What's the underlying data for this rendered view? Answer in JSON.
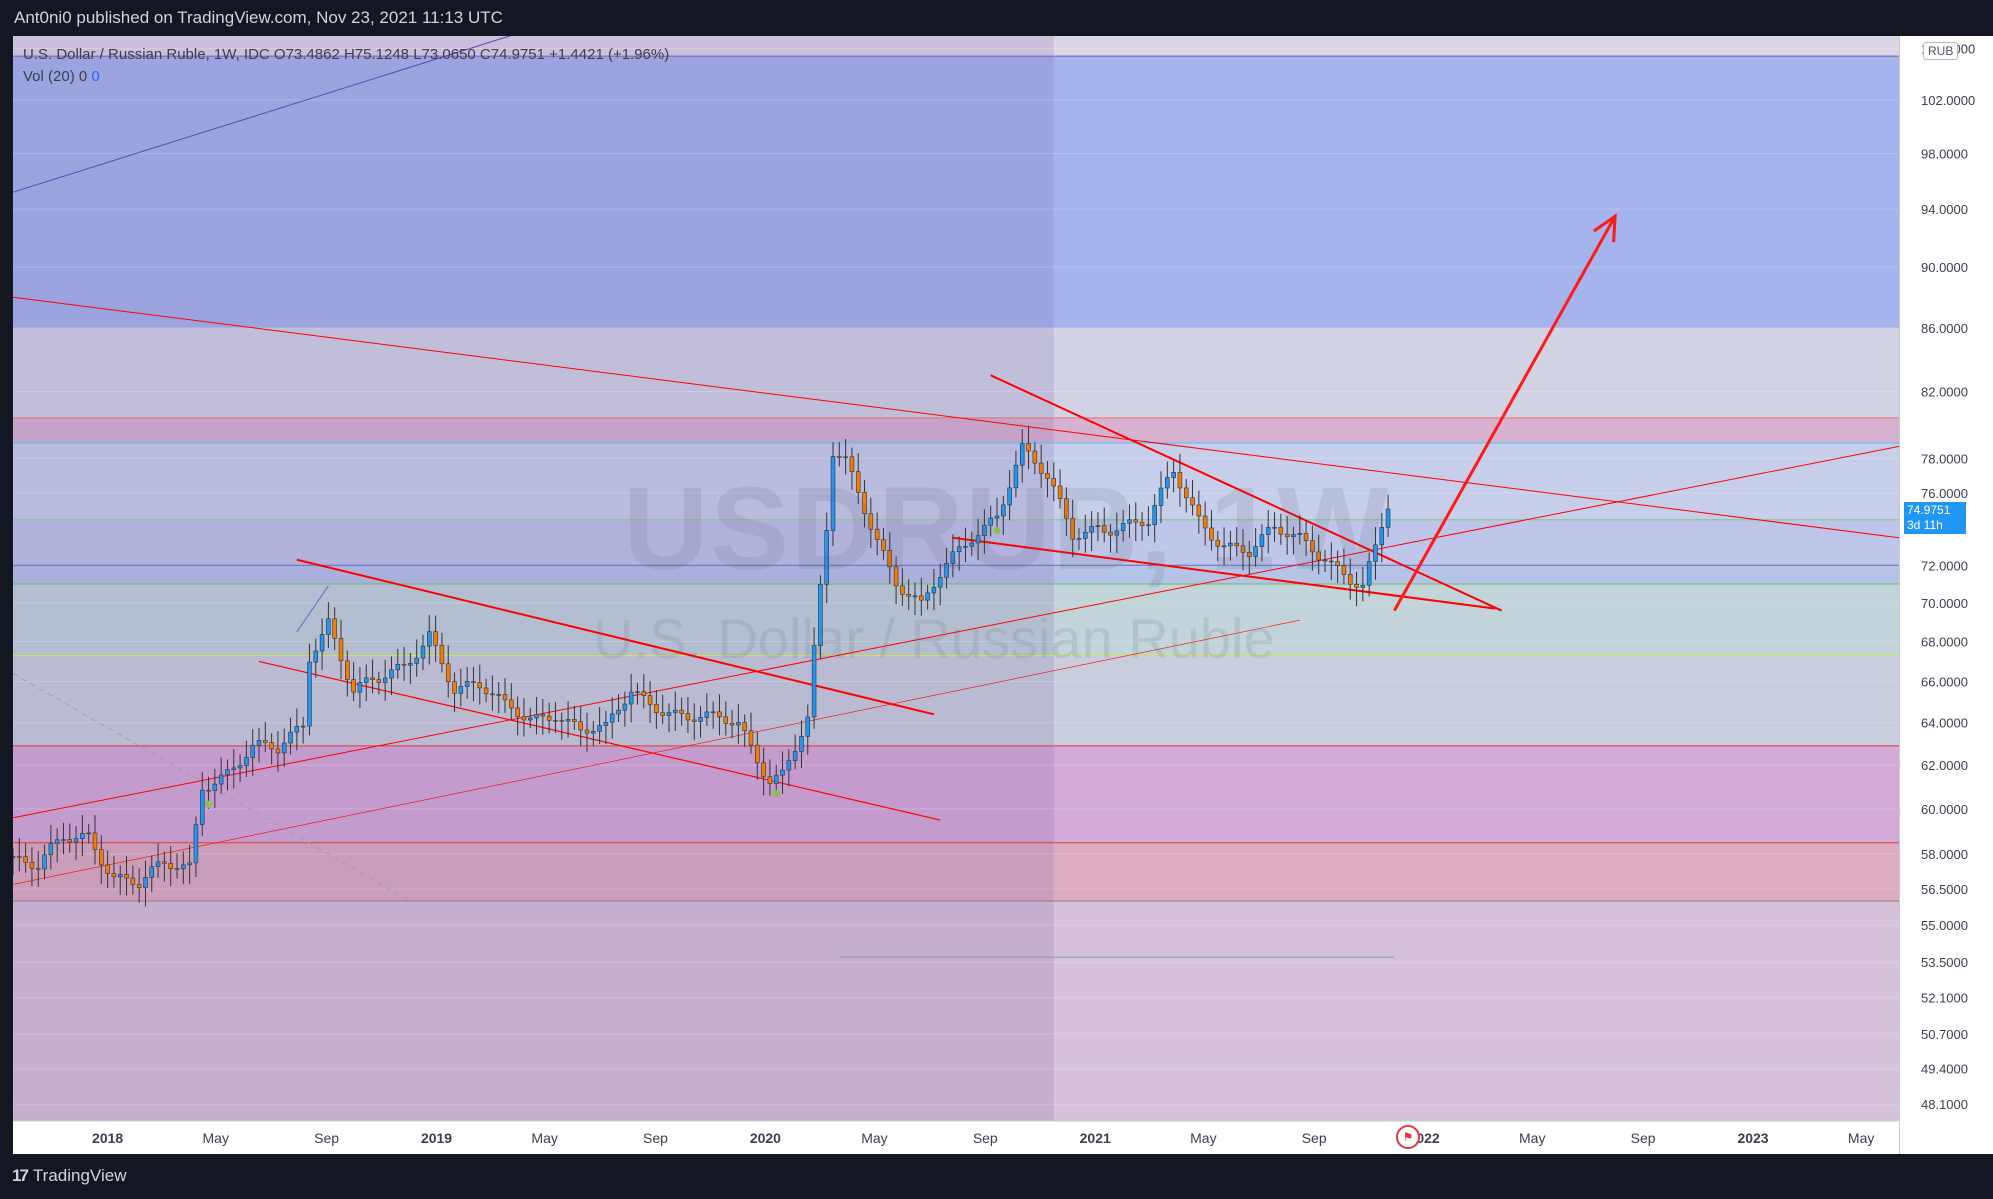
{
  "header": {
    "published": "Ant0ni0 published on TradingView.com, Nov 23, 2021 11:13 UTC"
  },
  "footer": {
    "brand": "TradingView"
  },
  "legend": {
    "symbol_line": "U.S. Dollar / Russian Ruble, 1W, IDC  O73.4862  H75.1248  L73.0650  C74.9751  +1.4421 (+1.96%)",
    "volume_label": "Vol (20)",
    "volume_value_1": "0",
    "volume_value_2": "0"
  },
  "watermark": {
    "ticker": "USDRUB, 1W",
    "name": "U.S. Dollar / Russian Ruble"
  },
  "price_axis": {
    "currency": "RUB",
    "last_price": "74.9751",
    "countdown": "3d 11h"
  },
  "colors": {
    "background": "#131722",
    "bull_candle": "#2196f3",
    "bear_candle": "#f57c00",
    "trendline": "#ff0000",
    "last_price_tag": "#2196f3"
  },
  "chart_data": {
    "type": "candlestick",
    "title": "U.S. Dollar / Russian Ruble, 1W, IDC",
    "ohlc_last": {
      "open": 73.4862,
      "high": 75.1248,
      "low": 73.065,
      "close": 74.9751,
      "change": 1.4421,
      "change_pct": 1.96
    },
    "y_scale": "log",
    "ylim": [
      47.5,
      107
    ],
    "y_ticks": [
      {
        "label": "106.0000",
        "value": 106
      },
      {
        "label": "102.0000",
        "value": 102
      },
      {
        "label": "98.0000",
        "value": 98
      },
      {
        "label": "94.0000",
        "value": 94
      },
      {
        "label": "90.0000",
        "value": 90
      },
      {
        "label": "86.0000",
        "value": 86
      },
      {
        "label": "82.0000",
        "value": 82
      },
      {
        "label": "78.0000",
        "value": 78
      },
      {
        "label": "76.0000",
        "value": 76
      },
      {
        "label": "72.0000",
        "value": 72
      },
      {
        "label": "70.0000",
        "value": 70
      },
      {
        "label": "68.0000",
        "value": 68
      },
      {
        "label": "66.0000",
        "value": 66
      },
      {
        "label": "64.0000",
        "value": 64
      },
      {
        "label": "62.0000",
        "value": 62
      },
      {
        "label": "60.0000",
        "value": 60
      },
      {
        "label": "58.0000",
        "value": 58
      },
      {
        "label": "56.5000",
        "value": 56.5
      },
      {
        "label": "55.0000",
        "value": 55
      },
      {
        "label": "53.5000",
        "value": 53.5
      },
      {
        "label": "52.1000",
        "value": 52.1
      },
      {
        "label": "50.7000",
        "value": 50.7
      },
      {
        "label": "49.4000",
        "value": 49.4
      },
      {
        "label": "48.1000",
        "value": 48.1
      }
    ],
    "xlim": [
      "2017-09-18",
      "2023-06-12"
    ],
    "x_ticks": [
      {
        "label": "2018",
        "date": "2018-01-01",
        "bold": true
      },
      {
        "label": "May",
        "date": "2018-05-01",
        "bold": false
      },
      {
        "label": "Sep",
        "date": "2018-09-01",
        "bold": false
      },
      {
        "label": "2019",
        "date": "2019-01-01",
        "bold": true
      },
      {
        "label": "May",
        "date": "2019-05-01",
        "bold": false
      },
      {
        "label": "Sep",
        "date": "2019-09-01",
        "bold": false
      },
      {
        "label": "2020",
        "date": "2020-01-01",
        "bold": true
      },
      {
        "label": "May",
        "date": "2020-05-01",
        "bold": false
      },
      {
        "label": "Sep",
        "date": "2020-09-01",
        "bold": false
      },
      {
        "label": "2021",
        "date": "2021-01-01",
        "bold": true
      },
      {
        "label": "May",
        "date": "2021-05-01",
        "bold": false
      },
      {
        "label": "Sep",
        "date": "2021-09-01",
        "bold": false
      },
      {
        "label": "2022",
        "date": "2022-01-01",
        "bold": true
      },
      {
        "label": "May",
        "date": "2022-05-01",
        "bold": false
      },
      {
        "label": "Sep",
        "date": "2022-09-01",
        "bold": false
      },
      {
        "label": "2023",
        "date": "2023-01-01",
        "bold": true
      },
      {
        "label": "May",
        "date": "2023-05-01",
        "bold": false
      }
    ],
    "zones": [
      {
        "from": 86.0,
        "to": 105.4,
        "color": "rgba(125,155,240,0.58)"
      },
      {
        "from": 80.4,
        "to": 86.0,
        "color": "rgba(200,210,228,0.55)"
      },
      {
        "from": 78.9,
        "to": 80.4,
        "color": "rgba(212,150,190,0.55)"
      },
      {
        "from": 74.5,
        "to": 78.9,
        "color": "rgba(180,200,236,0.55)"
      },
      {
        "from": 72.0,
        "to": 74.5,
        "color": "rgba(165,185,235,0.55)"
      },
      {
        "from": 71.0,
        "to": 72.0,
        "color": "rgba(150,180,230,0.55)"
      },
      {
        "from": 67.3,
        "to": 71.0,
        "color": "rgba(170,212,205,0.55)"
      },
      {
        "from": 62.9,
        "to": 67.3,
        "color": "rgba(186,200,214,0.55)"
      },
      {
        "from": 58.5,
        "to": 62.9,
        "color": "rgba(205,135,200,0.55)"
      },
      {
        "from": 56.0,
        "to": 58.5,
        "color": "rgba(220,140,160,0.55)"
      },
      {
        "from": 47.5,
        "to": 56.0,
        "color": "rgba(210,180,205,0.55)"
      }
    ],
    "shaded_period": {
      "from": "2017-09-18",
      "to": "2020-11-16"
    },
    "horizontal_lines": [
      {
        "value": 105.4,
        "color": "#7e57c2"
      },
      {
        "value": 80.4,
        "color": "#e57373"
      },
      {
        "value": 78.9,
        "color": "#4fc3f7"
      },
      {
        "value": 74.5,
        "color": "#81c784"
      },
      {
        "value": 72.0,
        "color": "#5c6bc0"
      },
      {
        "value": 71.0,
        "color": "#66bb6a"
      },
      {
        "value": 67.3,
        "color": "#d4e157"
      },
      {
        "value": 62.9,
        "color": "#e53935"
      },
      {
        "value": 58.5,
        "color": "#e53935"
      },
      {
        "value": 56.0,
        "color": "#8e7a8e"
      }
    ],
    "trendlines": [
      {
        "from": [
          "2017-09-18",
          88.0
        ],
        "to": [
          "2023-06-12",
          73.5
        ],
        "color": "#ff0000",
        "width": 1
      },
      {
        "from": [
          "2017-09-18",
          59.6
        ],
        "to": [
          "2023-06-12",
          78.7
        ],
        "color": "#ff0000",
        "width": 1
      },
      {
        "from": [
          "2017-09-18",
          56.7
        ],
        "to": [
          "2021-08-16",
          69.1
        ],
        "color": "#ff0000",
        "width": 0.6
      },
      {
        "from": [
          "2018-07-30",
          72.3
        ],
        "to": [
          "2020-07-06",
          64.4
        ],
        "color": "#ff0000",
        "width": 2
      },
      {
        "from": [
          "2018-06-18",
          67.0
        ],
        "to": [
          "2020-07-13",
          59.5
        ],
        "color": "#ff0000",
        "width": 1.2
      },
      {
        "from": [
          "2020-09-07",
          83.0
        ],
        "to": [
          "2022-03-28",
          69.6
        ],
        "color": "#ff0000",
        "width": 2
      },
      {
        "from": [
          "2020-07-27",
          73.5
        ],
        "to": [
          "2022-03-21",
          69.7
        ],
        "color": "#ff0000",
        "width": 2
      },
      {
        "from": [
          "2017-09-18",
          95.2
        ],
        "to": [
          "2019-05-06",
          108.0
        ],
        "color": "#5c4ab0",
        "width": 1
      },
      {
        "from": [
          "2018-07-30",
          68.5
        ],
        "to": [
          "2018-09-03",
          70.9
        ],
        "color": "#7e57c2",
        "width": 1
      },
      {
        "from": [
          "2017-09-18",
          66.4
        ],
        "to": [
          "2018-12-03",
          56.0
        ],
        "color": "#9e9e9e",
        "width": 1,
        "dash": true
      }
    ],
    "projection_arrow": {
      "from": [
        "2021-11-29",
        69.6
      ],
      "to": [
        "2022-08-01",
        93.5
      ],
      "color": "#ff1a1a"
    },
    "short_segment": {
      "from": [
        "2020-03-23",
        53.7
      ],
      "to": [
        "2021-11-29",
        53.7
      ],
      "color": "#8c9aa8"
    },
    "volume_zero": {
      "from": 0,
      "to": 0
    },
    "series": [
      {
        "name": "USDRUB",
        "close_path": [
          [
            "2017-09-18",
            57.8
          ],
          [
            "2017-10-16",
            57.2
          ],
          [
            "2017-11-13",
            58.6
          ],
          [
            "2017-12-11",
            59.0
          ],
          [
            "2018-01-08",
            57.2
          ],
          [
            "2018-02-05",
            56.6
          ],
          [
            "2018-03-05",
            57.3
          ],
          [
            "2018-04-02",
            57.5
          ],
          [
            "2018-04-16",
            61.3
          ],
          [
            "2018-05-14",
            61.8
          ],
          [
            "2018-06-11",
            62.6
          ],
          [
            "2018-07-09",
            62.5
          ],
          [
            "2018-08-06",
            64.0
          ],
          [
            "2018-08-13",
            67.5
          ],
          [
            "2018-09-03",
            69.3
          ],
          [
            "2018-10-01",
            65.5
          ],
          [
            "2018-10-29",
            65.8
          ],
          [
            "2018-11-26",
            66.6
          ],
          [
            "2018-12-24",
            68.7
          ],
          [
            "2019-01-21",
            65.8
          ],
          [
            "2019-02-18",
            65.5
          ],
          [
            "2019-03-18",
            64.6
          ],
          [
            "2019-04-15",
            64.4
          ],
          [
            "2019-05-13",
            64.7
          ],
          [
            "2019-06-10",
            63.5
          ],
          [
            "2019-07-08",
            63.4
          ],
          [
            "2019-08-05",
            65.6
          ],
          [
            "2019-09-02",
            65.1
          ],
          [
            "2019-10-07",
            64.2
          ],
          [
            "2019-11-04",
            63.9
          ],
          [
            "2019-12-02",
            63.9
          ],
          [
            "2020-01-06",
            61.6
          ],
          [
            "2020-01-20",
            61.8
          ],
          [
            "2020-02-17",
            64.0
          ],
          [
            "2020-03-09",
            73.6
          ],
          [
            "2020-03-16",
            78.0
          ],
          [
            "2020-03-30",
            77.7
          ],
          [
            "2020-04-27",
            74.6
          ],
          [
            "2020-05-25",
            71.3
          ],
          [
            "2020-06-22",
            69.6
          ],
          [
            "2020-07-20",
            71.7
          ],
          [
            "2020-08-17",
            73.7
          ],
          [
            "2020-09-14",
            75.1
          ],
          [
            "2020-10-12",
            78.5
          ],
          [
            "2020-11-09",
            76.5
          ],
          [
            "2020-12-07",
            73.6
          ],
          [
            "2021-01-04",
            74.4
          ],
          [
            "2021-02-01",
            74.3
          ],
          [
            "2021-03-01",
            74.1
          ],
          [
            "2021-03-29",
            77.0
          ],
          [
            "2021-04-26",
            74.7
          ],
          [
            "2021-05-24",
            73.4
          ],
          [
            "2021-06-21",
            72.6
          ],
          [
            "2021-07-19",
            73.6
          ],
          [
            "2021-08-16",
            73.5
          ],
          [
            "2021-09-13",
            72.8
          ],
          [
            "2021-10-11",
            71.3
          ],
          [
            "2021-10-25",
            70.7
          ],
          [
            "2021-11-08",
            72.5
          ],
          [
            "2021-11-22",
            74.9751
          ]
        ]
      }
    ],
    "signal_dots": [
      {
        "date": "2018-04-23",
        "value": 60.2
      },
      {
        "date": "2020-01-13",
        "value": 60.7
      },
      {
        "date": "2020-09-14",
        "value": 73.9
      }
    ]
  }
}
